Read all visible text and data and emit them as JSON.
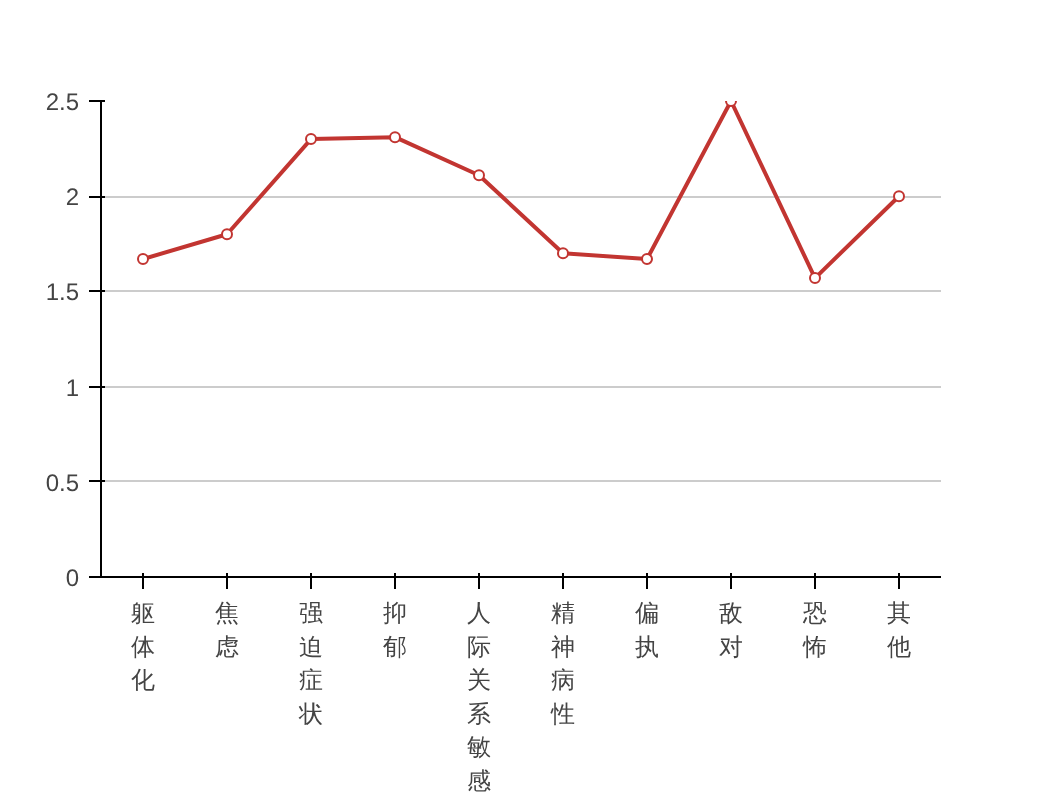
{
  "chart_data": {
    "type": "line",
    "categories": [
      "躯体化",
      "焦虑",
      "强迫症状",
      "抑郁",
      "人际关系敏感",
      "精神病性",
      "偏执",
      "敌对",
      "恐怖",
      "其他"
    ],
    "series": [
      {
        "color": "#c23531",
        "values": [
          1.67,
          1.8,
          2.3,
          2.31,
          2.11,
          1.7,
          1.67,
          2.5,
          1.57,
          2.0
        ]
      }
    ],
    "ylim": [
      0,
      2.5
    ],
    "yticks": [
      0,
      0.5,
      1,
      1.5,
      2,
      2.5
    ],
    "grid": "y",
    "marker": "circle",
    "line_style": "solid"
  }
}
